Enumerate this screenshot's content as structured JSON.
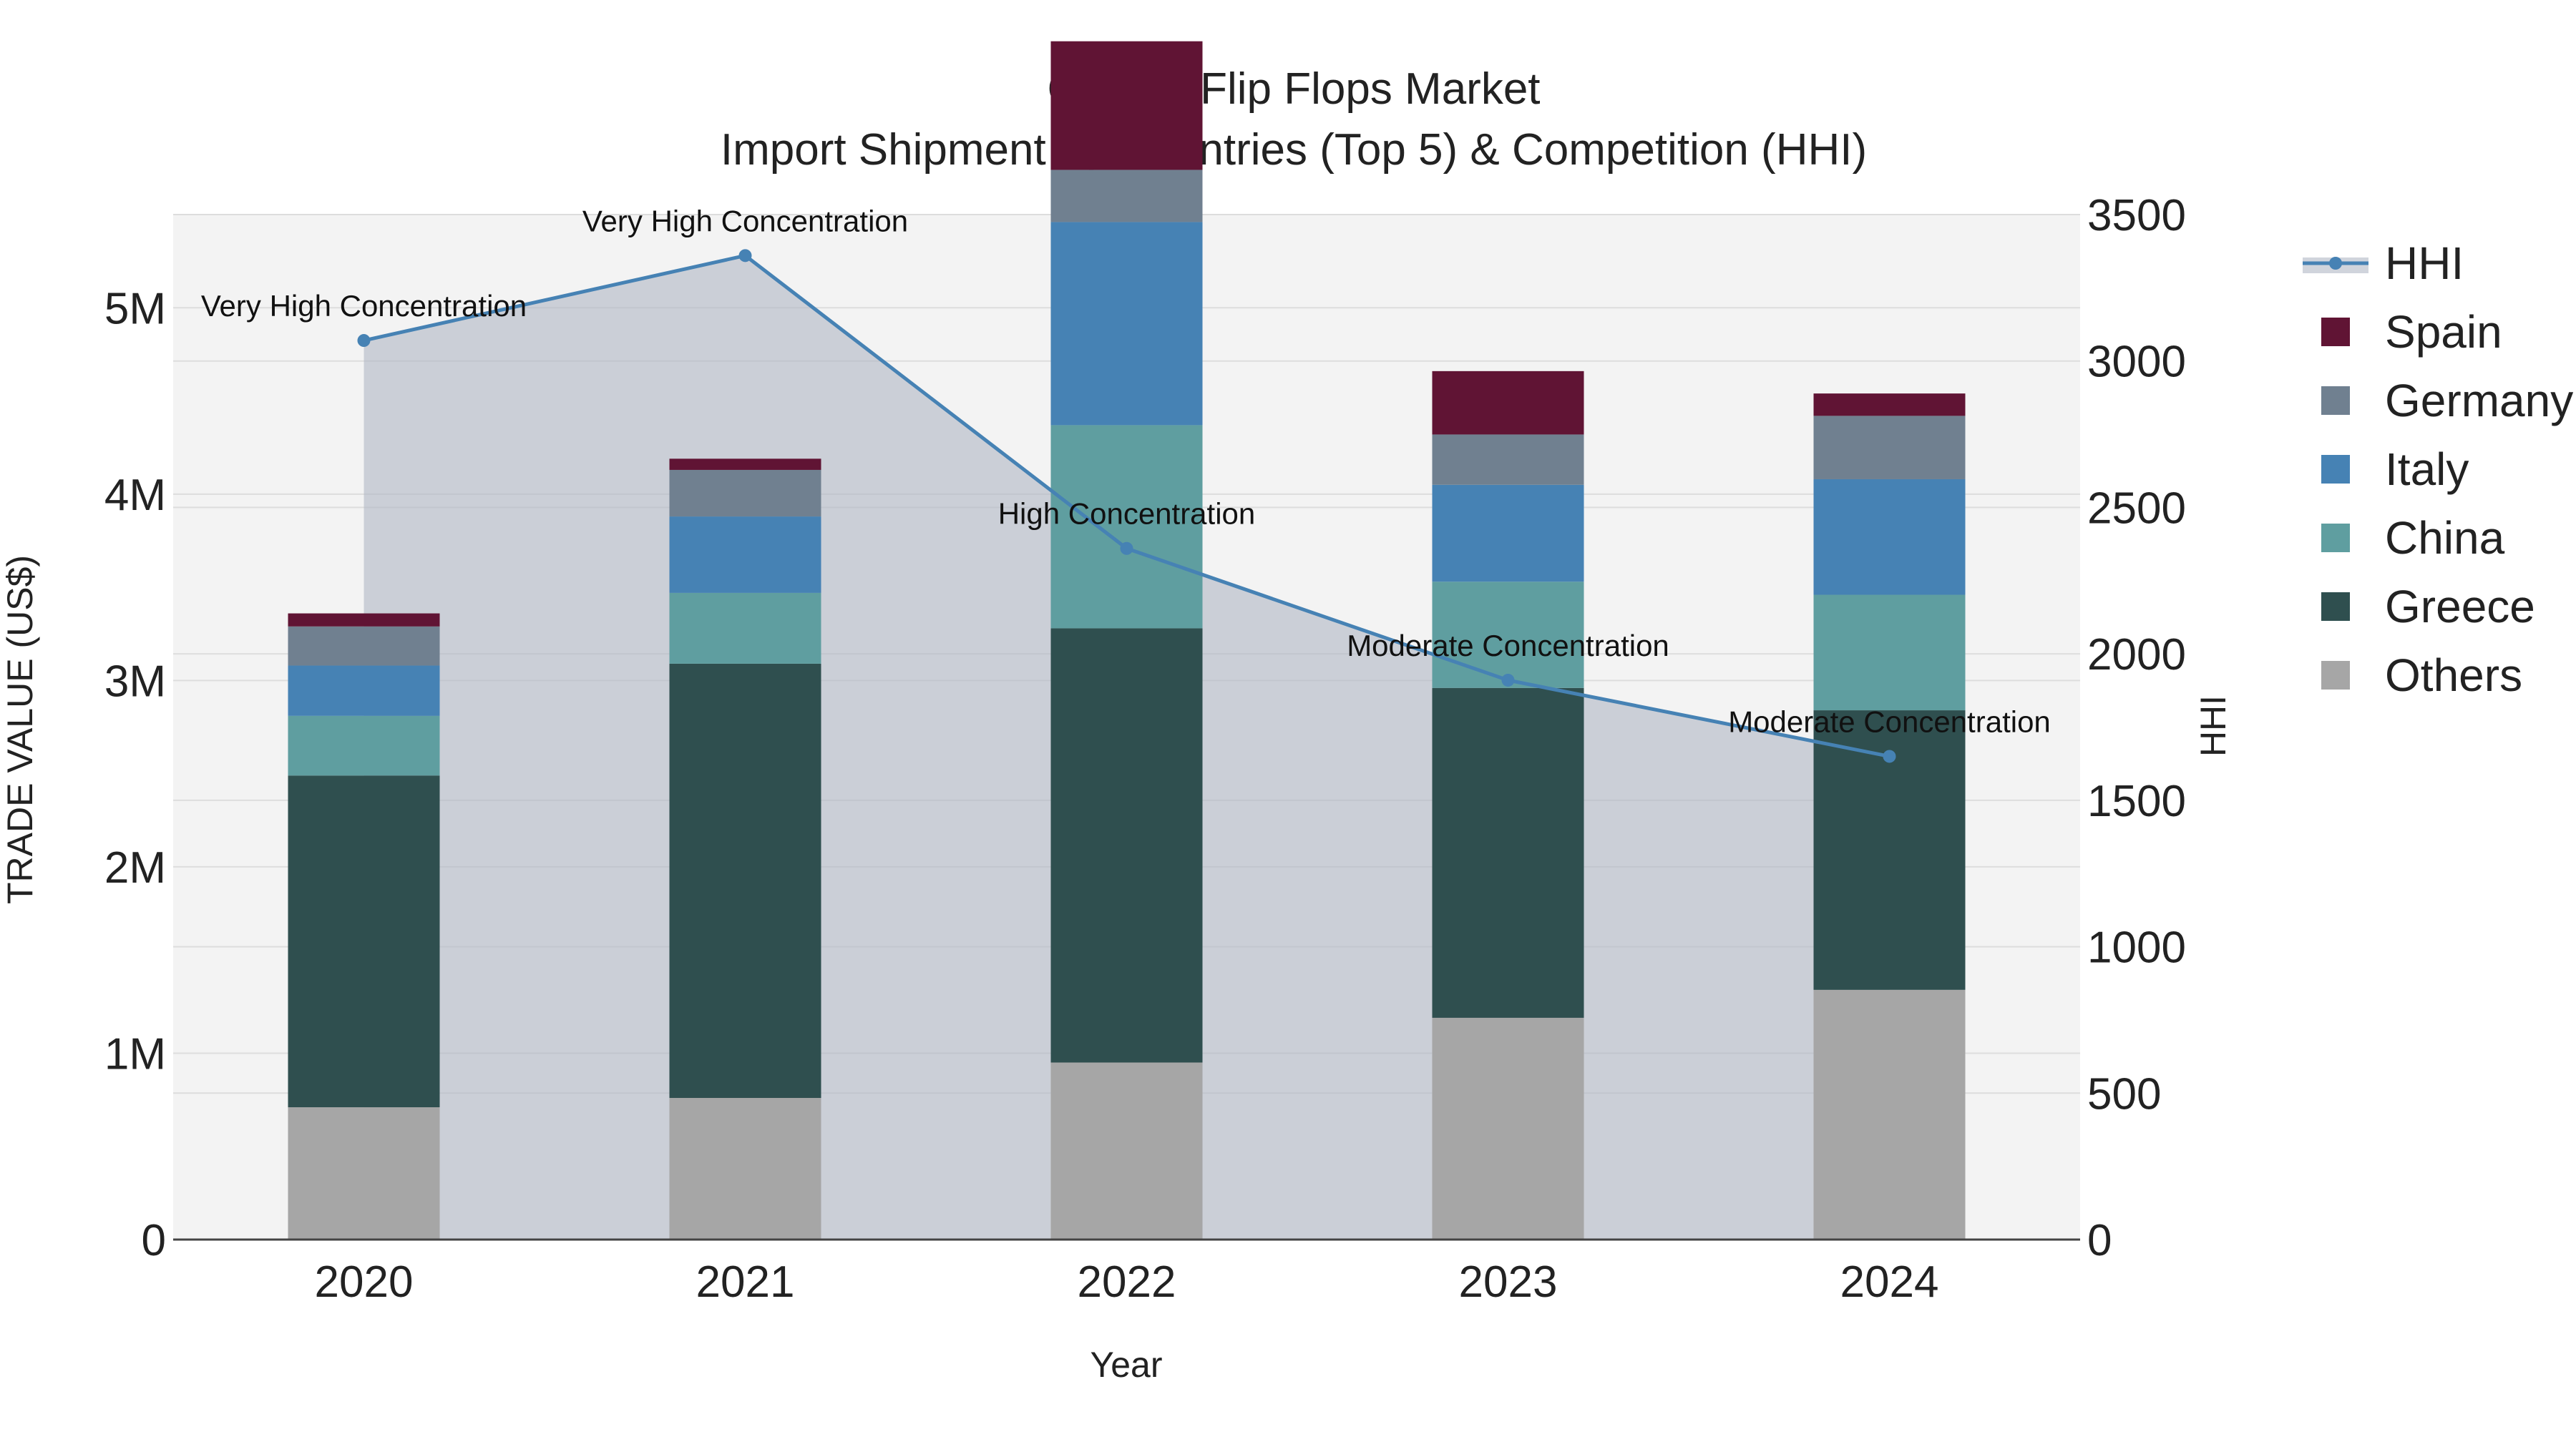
{
  "chart_data": {
    "type": "bar",
    "stacked": true,
    "title": "Cyprus Flip Flops Market",
    "subtitle": "Import Shipment by Countries (Top 5) & Competition (HHI)",
    "xlabel": "Year",
    "ylabel": "TRADE VALUE (US$)",
    "y2label": "HHI",
    "categories": [
      "2020",
      "2021",
      "2022",
      "2023",
      "2024"
    ],
    "ylim": [
      0,
      5500000
    ],
    "y_ticks": [
      0,
      1000000,
      2000000,
      3000000,
      4000000,
      5000000
    ],
    "y_tick_labels": [
      "0",
      "1M",
      "2M",
      "3M",
      "4M",
      "5M"
    ],
    "y2lim": [
      0,
      3500
    ],
    "y2_ticks": [
      0,
      500,
      1000,
      1500,
      2000,
      2500,
      3000,
      3500
    ],
    "y2_tick_labels": [
      "0",
      "500",
      "1000",
      "1500",
      "2000",
      "2500",
      "3000",
      "3500"
    ],
    "grid": true,
    "legend_position": "right",
    "series": [
      {
        "name": "Others",
        "color": "#A6A6A6",
        "values": [
          710000,
          760000,
          950000,
          1190000,
          1340000
        ]
      },
      {
        "name": "Greece",
        "color": "#2F4F4F",
        "values": [
          1780000,
          2330000,
          2330000,
          1770000,
          1500000
        ]
      },
      {
        "name": "China",
        "color": "#5F9EA0",
        "values": [
          320000,
          380000,
          1090000,
          570000,
          620000
        ]
      },
      {
        "name": "Italy",
        "color": "#4682B4",
        "values": [
          270000,
          410000,
          1090000,
          520000,
          620000
        ]
      },
      {
        "name": "Germany",
        "color": "#708090",
        "values": [
          210000,
          250000,
          280000,
          270000,
          340000
        ]
      },
      {
        "name": "Spain",
        "color": "#601434",
        "values": [
          70000,
          60000,
          690000,
          340000,
          120000
        ]
      }
    ],
    "hhi": {
      "name": "HHI",
      "color": "#4682B4",
      "fill_color": "#B0B8C4",
      "values": [
        3070,
        3360,
        2360,
        1910,
        1650
      ],
      "annotations": [
        "Very High Concentration",
        "Very High Concentration",
        "High Concentration",
        "Moderate Concentration",
        "Moderate Concentration"
      ]
    },
    "legend": [
      "HHI",
      "Spain",
      "Germany",
      "Italy",
      "China",
      "Greece",
      "Others"
    ]
  }
}
